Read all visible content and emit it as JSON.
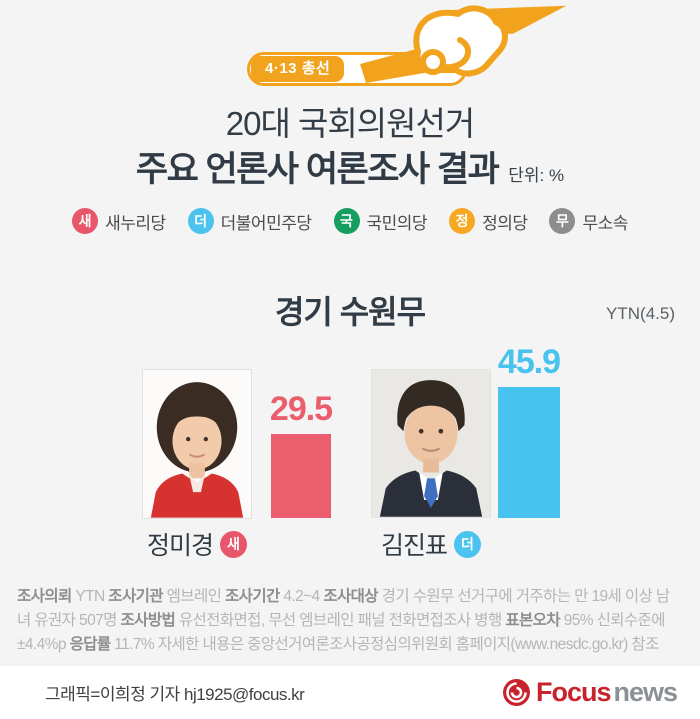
{
  "header": {
    "badge_label": "4·13 총선",
    "title_line1": "20대 국회의원선거",
    "title_line2": "주요 언론사 여론조사 결과",
    "unit": "단위: %"
  },
  "icons": {
    "top": "ballot-hand-icon",
    "logo": "focus-swirl-icon"
  },
  "legend": {
    "items": [
      {
        "abbr": "새",
        "label": "새누리당",
        "color": "#e8566c"
      },
      {
        "abbr": "더",
        "label": "더불어민주당",
        "color": "#4cc3ef"
      },
      {
        "abbr": "국",
        "label": "국민의당",
        "color": "#169e60"
      },
      {
        "abbr": "정",
        "label": "정의당",
        "color": "#f6a723"
      },
      {
        "abbr": "무",
        "label": "무소속",
        "color": "#8d8d8d"
      }
    ]
  },
  "poll": {
    "region": "경기 수원무",
    "source": "YTN(4.5)"
  },
  "chart_data": {
    "type": "bar",
    "title": "경기 수원무",
    "source": "YTN(4.5)",
    "unit": "%",
    "ylim": [
      0,
      50
    ],
    "categories": [
      "정미경",
      "김진표"
    ],
    "values": [
      29.5,
      45.9
    ],
    "series": [
      {
        "name": "정미경",
        "party": "새",
        "value": 29.5,
        "value_label": "29.5",
        "color": "#ea5e6e",
        "party_color": "#e8566c"
      },
      {
        "name": "김진표",
        "party": "더",
        "value": 45.9,
        "value_label": "45.9",
        "color": "#48c2ee",
        "party_color": "#4cc3ef"
      }
    ]
  },
  "survey": {
    "segments": [
      {
        "label": "조사의뢰",
        "text": "YTN"
      },
      {
        "label": "조사기관",
        "text": "엠브레인"
      },
      {
        "label": "조사기간",
        "text": "4.2~4"
      },
      {
        "label": "조사대상",
        "text": "경기 수원무 선거구에 거주하는 만 19세 이상 남녀 유권자 507명"
      },
      {
        "label": "조사방법",
        "text": "유선전화면접, 무선 엠브레인 패널 전화면접조사 병행"
      },
      {
        "label": "표본오차",
        "text": "95% 신뢰수준에 ±4.4%p"
      },
      {
        "label": "응답률",
        "text": "11.7%"
      },
      {
        "label": "",
        "text": "자세한 내용은 중앙선거여론조사공정심의위원회 홈페이지(www.nesdc.go.kr) 참조"
      }
    ]
  },
  "footer": {
    "credit": "그래픽=이희정 기자 hj1925@focus.kr",
    "logo": {
      "focus": "Focus",
      "news": "news"
    }
  },
  "colors": {
    "background": "#f4f4f4",
    "accent_orange": "#f2a31d",
    "title_navy": "#313b45",
    "bar_red": "#ea5e6e",
    "bar_blue": "#48c2ee",
    "footer_bg": "#ffffff",
    "logo_red": "#c8232c",
    "logo_gray": "#8a9095"
  }
}
